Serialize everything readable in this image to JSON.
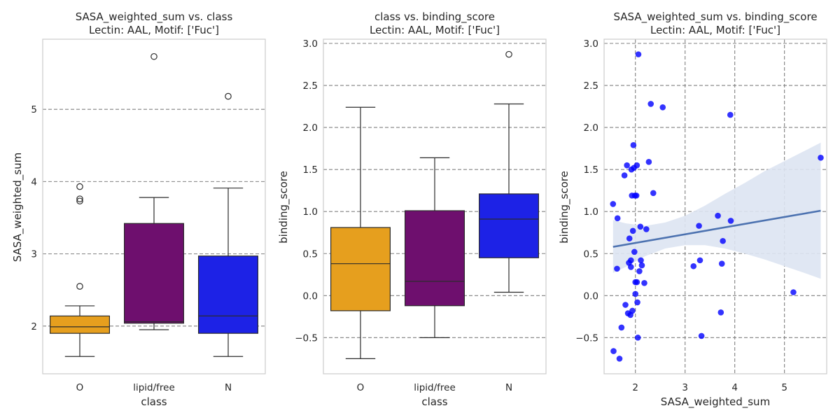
{
  "chart_data": [
    {
      "type": "box",
      "title": "SASA_weighted_sum vs. class",
      "subtitle": "Lectin: AAL, Motif: ['Fuc']",
      "xlabel": "class",
      "ylabel": "SASA_weighted_sum",
      "categories": [
        "O",
        "lipid/free",
        "N"
      ],
      "yticks": [
        "2",
        "3",
        "4",
        "5"
      ],
      "ylim": [
        1.34,
        5.97
      ],
      "grid": "horizontal-dashed",
      "boxes": [
        {
          "category": "O",
          "color": "#e69f1e",
          "whisker_low": 1.58,
          "q1": 1.9,
          "median": 1.99,
          "q3": 2.14,
          "whisker_high": 2.28,
          "outliers": [
            2.55,
            3.73,
            3.76,
            3.93
          ]
        },
        {
          "category": "lipid/free",
          "color": "#6e0f6e",
          "whisker_low": 1.95,
          "q1": 2.04,
          "median": 2.06,
          "q3": 3.42,
          "whisker_high": 3.78,
          "outliers": [
            5.73
          ]
        },
        {
          "category": "N",
          "color": "#1d22e6",
          "whisker_low": 1.58,
          "q1": 1.9,
          "median": 2.14,
          "q3": 2.97,
          "whisker_high": 3.91,
          "outliers": [
            5.18
          ]
        }
      ]
    },
    {
      "type": "box",
      "title": "class vs. binding_score",
      "subtitle": "Lectin: AAL, Motif: ['Fuc']",
      "xlabel": "class",
      "ylabel": "binding_score",
      "categories": [
        "O",
        "lipid/free",
        "N"
      ],
      "yticks": [
        "−0.5",
        "0.0",
        "0.5",
        "1.0",
        "1.5",
        "2.0",
        "2.5",
        "3.0"
      ],
      "ylim": [
        -0.93,
        3.05
      ],
      "grid": "horizontal-dashed",
      "boxes": [
        {
          "category": "O",
          "color": "#e69f1e",
          "whisker_low": -0.75,
          "q1": -0.18,
          "median": 0.38,
          "q3": 0.81,
          "whisker_high": 2.24,
          "outliers": []
        },
        {
          "category": "lipid/free",
          "color": "#6e0f6e",
          "whisker_low": -0.5,
          "q1": -0.12,
          "median": 0.17,
          "q3": 1.01,
          "whisker_high": 1.64,
          "outliers": []
        },
        {
          "category": "N",
          "color": "#1d22e6",
          "whisker_low": 0.04,
          "q1": 0.45,
          "median": 0.91,
          "q3": 1.21,
          "whisker_high": 2.28,
          "outliers": [
            2.87
          ]
        }
      ]
    },
    {
      "type": "scatter",
      "title": "SASA_weighted_sum vs. binding_score",
      "subtitle": "Lectin: AAL, Motif: ['Fuc']",
      "xlabel": "SASA_weighted_sum",
      "ylabel": "binding_score",
      "xticks": [
        "2",
        "3",
        "4",
        "5"
      ],
      "yticks": [
        "−0.5",
        "0.0",
        "0.5",
        "1.0",
        "1.5",
        "2.0",
        "2.5",
        "3.0"
      ],
      "xlim": [
        1.37,
        5.85
      ],
      "ylim": [
        -0.93,
        3.05
      ],
      "grid": "both-dashed",
      "point_color": "#0000ff",
      "regression_line": {
        "x": [
          1.55,
          5.73
        ],
        "y": [
          0.58,
          1.01
        ],
        "color": "#4c72b0"
      },
      "confidence_band": {
        "color": "#dde4f2",
        "x": [
          1.55,
          1.8,
          2.2,
          2.6,
          3.0,
          3.4,
          3.8,
          4.2,
          4.6,
          5.0,
          5.4,
          5.73
        ],
        "upper": [
          0.9,
          0.86,
          0.83,
          0.87,
          0.95,
          1.07,
          1.21,
          1.34,
          1.48,
          1.6,
          1.72,
          1.82
        ],
        "lower": [
          0.27,
          0.34,
          0.47,
          0.56,
          0.6,
          0.6,
          0.56,
          0.5,
          0.43,
          0.35,
          0.27,
          0.2
        ]
      },
      "points": [
        [
          1.55,
          1.09
        ],
        [
          1.56,
          -0.66
        ],
        [
          1.63,
          0.32
        ],
        [
          1.64,
          0.92
        ],
        [
          1.68,
          -0.75
        ],
        [
          1.72,
          -0.38
        ],
        [
          1.78,
          1.43
        ],
        [
          1.8,
          -0.11
        ],
        [
          1.83,
          1.55
        ],
        [
          1.85,
          -0.21
        ],
        [
          1.87,
          0.39
        ],
        [
          1.88,
          0.68
        ],
        [
          1.9,
          -0.23
        ],
        [
          1.91,
          0.34
        ],
        [
          1.91,
          0.42
        ],
        [
          1.92,
          1.5
        ],
        [
          1.93,
          1.19
        ],
        [
          1.94,
          -0.18
        ],
        [
          1.95,
          0.77
        ],
        [
          1.96,
          1.79
        ],
        [
          1.97,
          1.52
        ],
        [
          1.98,
          0.52
        ],
        [
          1.99,
          1.19
        ],
        [
          2.0,
          0.02
        ],
        [
          2.0,
          0.16
        ],
        [
          2.02,
          1.19
        ],
        [
          2.03,
          0.16
        ],
        [
          2.03,
          1.55
        ],
        [
          2.04,
          -0.08
        ],
        [
          2.05,
          -0.5
        ],
        [
          2.06,
          2.87
        ],
        [
          2.08,
          0.29
        ],
        [
          2.1,
          0.82
        ],
        [
          2.11,
          0.42
        ],
        [
          2.13,
          0.36
        ],
        [
          2.18,
          0.15
        ],
        [
          2.22,
          0.79
        ],
        [
          2.27,
          1.59
        ],
        [
          2.31,
          2.28
        ],
        [
          2.36,
          1.22
        ],
        [
          2.55,
          2.24
        ],
        [
          3.17,
          0.35
        ],
        [
          3.28,
          0.83
        ],
        [
          3.33,
          -0.48
        ],
        [
          3.3,
          0.42
        ],
        [
          3.66,
          0.95
        ],
        [
          3.72,
          -0.2
        ],
        [
          3.74,
          0.38
        ],
        [
          3.76,
          0.65
        ],
        [
          3.91,
          2.15
        ],
        [
          3.92,
          0.89
        ],
        [
          5.18,
          0.04
        ],
        [
          5.73,
          1.64
        ]
      ]
    }
  ]
}
